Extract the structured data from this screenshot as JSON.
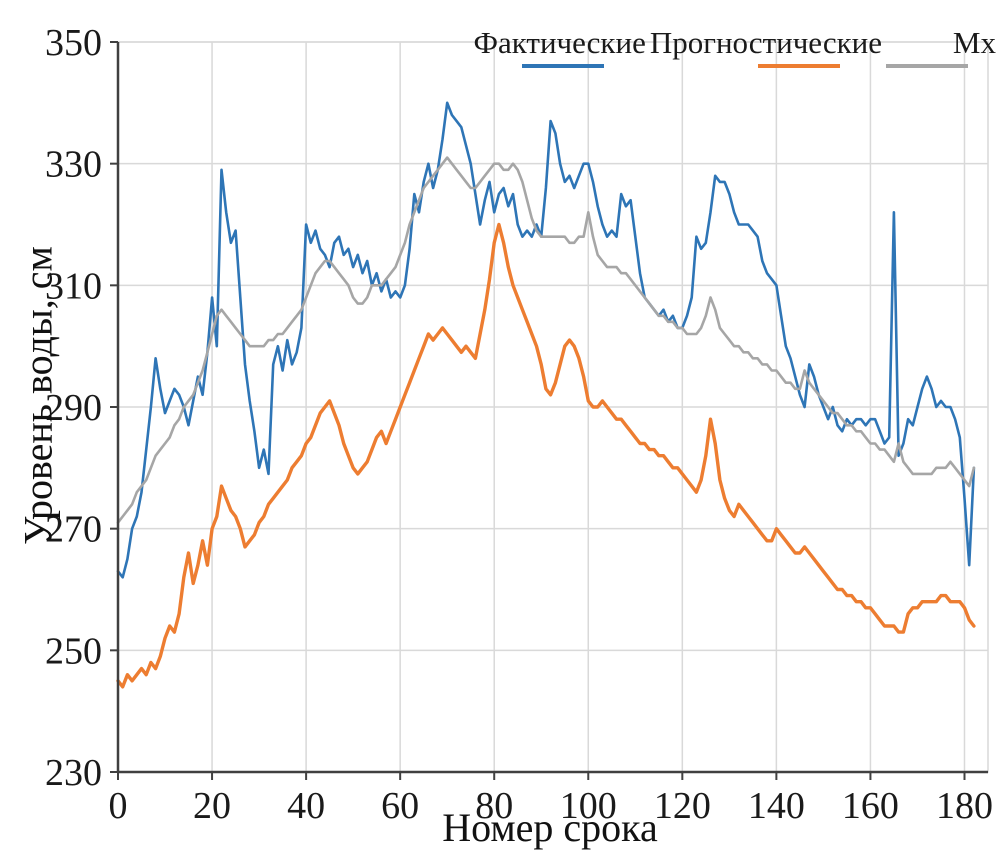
{
  "chart_data": {
    "type": "line",
    "title": "",
    "xlabel": "Номер срока",
    "ylabel": "Уровень воды, см",
    "xlim": [
      0,
      185
    ],
    "ylim": [
      230,
      350
    ],
    "xticks": [
      0,
      20,
      40,
      60,
      80,
      100,
      120,
      140,
      160,
      180
    ],
    "yticks": [
      230,
      250,
      270,
      290,
      310,
      330,
      350
    ],
    "grid": true,
    "legend_position": "top",
    "x_start": 0,
    "x_step": 1,
    "colors": {
      "grid": "#d9d9d9",
      "axis": "#404040",
      "text": "#1a1a1a"
    },
    "series": [
      {
        "name": "Фактические",
        "color": "#2E75B6",
        "values": [
          263,
          262,
          265,
          270,
          272,
          276,
          283,
          290,
          298,
          293,
          289,
          291,
          293,
          292,
          290,
          287,
          291,
          295,
          292,
          299,
          308,
          300,
          329,
          322,
          317,
          319,
          308,
          297,
          291,
          286,
          280,
          283,
          279,
          297,
          300,
          296,
          301,
          297,
          299,
          303,
          320,
          317,
          319,
          316,
          315,
          313,
          317,
          318,
          315,
          316,
          313,
          315,
          312,
          314,
          310,
          312,
          309,
          311,
          308,
          309,
          308,
          310,
          316,
          325,
          322,
          327,
          330,
          326,
          329,
          334,
          340,
          338,
          337,
          336,
          333,
          330,
          325,
          320,
          324,
          327,
          322,
          325,
          326,
          323,
          325,
          320,
          318,
          319,
          318,
          320,
          318,
          326,
          337,
          335,
          330,
          327,
          328,
          326,
          328,
          330,
          330,
          327,
          323,
          320,
          318,
          319,
          318,
          325,
          323,
          324,
          318,
          312,
          308,
          307,
          306,
          305,
          306,
          304,
          305,
          303,
          303,
          305,
          308,
          318,
          316,
          317,
          322,
          328,
          327,
          327,
          325,
          322,
          320,
          320,
          320,
          319,
          318,
          314,
          312,
          311,
          310,
          305,
          300,
          298,
          295,
          292,
          290,
          297,
          295,
          292,
          290,
          288,
          290,
          287,
          286,
          288,
          287,
          288,
          288,
          287,
          288,
          288,
          286,
          284,
          285,
          322,
          282,
          284,
          288,
          287,
          290,
          293,
          295,
          293,
          290,
          291,
          290,
          290,
          288,
          285,
          275,
          264,
          280
        ]
      },
      {
        "name": "Прогностические",
        "color": "#ED7D31",
        "values": [
          245,
          244,
          246,
          245,
          246,
          247,
          246,
          248,
          247,
          249,
          252,
          254,
          253,
          256,
          262,
          266,
          261,
          264,
          268,
          264,
          270,
          272,
          277,
          275,
          273,
          272,
          270,
          267,
          268,
          269,
          271,
          272,
          274,
          275,
          276,
          277,
          278,
          280,
          281,
          282,
          284,
          285,
          287,
          289,
          290,
          291,
          289,
          287,
          284,
          282,
          280,
          279,
          280,
          281,
          283,
          285,
          286,
          284,
          286,
          288,
          290,
          292,
          294,
          296,
          298,
          300,
          302,
          301,
          302,
          303,
          302,
          301,
          300,
          299,
          300,
          299,
          298,
          302,
          306,
          311,
          317,
          320,
          317,
          313,
          310,
          308,
          306,
          304,
          302,
          300,
          297,
          293,
          292,
          294,
          297,
          300,
          301,
          300,
          298,
          295,
          291,
          290,
          290,
          291,
          290,
          289,
          288,
          288,
          287,
          286,
          285,
          284,
          284,
          283,
          283,
          282,
          282,
          281,
          280,
          280,
          279,
          278,
          277,
          276,
          278,
          282,
          288,
          284,
          278,
          275,
          273,
          272,
          274,
          273,
          272,
          271,
          270,
          269,
          268,
          268,
          270,
          269,
          268,
          267,
          266,
          266,
          267,
          266,
          265,
          264,
          263,
          262,
          261,
          260,
          260,
          259,
          259,
          258,
          258,
          257,
          257,
          256,
          255,
          254,
          254,
          254,
          253,
          253,
          256,
          257,
          257,
          258,
          258,
          258,
          258,
          259,
          259,
          258,
          258,
          258,
          257,
          255,
          254
        ]
      },
      {
        "name": "Мх",
        "color": "#A6A6A6",
        "values": [
          271,
          272,
          273,
          274,
          276,
          277,
          278,
          280,
          282,
          283,
          284,
          285,
          287,
          288,
          290,
          291,
          292,
          294,
          296,
          299,
          302,
          305,
          306,
          305,
          304,
          303,
          302,
          301,
          300,
          300,
          300,
          300,
          301,
          301,
          302,
          302,
          303,
          304,
          305,
          306,
          308,
          310,
          312,
          313,
          314,
          314,
          313,
          312,
          311,
          310,
          308,
          307,
          307,
          308,
          310,
          310,
          310,
          311,
          312,
          313,
          315,
          317,
          320,
          322,
          324,
          326,
          327,
          328,
          329,
          330,
          331,
          330,
          329,
          328,
          327,
          326,
          326,
          327,
          328,
          329,
          330,
          330,
          329,
          329,
          330,
          329,
          327,
          324,
          321,
          319,
          318,
          318,
          318,
          318,
          318,
          318,
          317,
          317,
          318,
          318,
          322,
          318,
          315,
          314,
          313,
          313,
          313,
          312,
          312,
          311,
          310,
          309,
          308,
          307,
          306,
          305,
          305,
          304,
          304,
          303,
          303,
          302,
          302,
          302,
          303,
          305,
          308,
          306,
          303,
          302,
          301,
          300,
          300,
          299,
          299,
          298,
          298,
          297,
          297,
          296,
          296,
          295,
          294,
          294,
          293,
          293,
          296,
          294,
          293,
          292,
          291,
          290,
          289,
          289,
          288,
          287,
          287,
          286,
          286,
          285,
          284,
          284,
          283,
          283,
          282,
          281,
          284,
          281,
          280,
          279,
          279,
          279,
          279,
          279,
          280,
          280,
          280,
          281,
          280,
          279,
          278,
          277,
          280
        ]
      }
    ]
  }
}
